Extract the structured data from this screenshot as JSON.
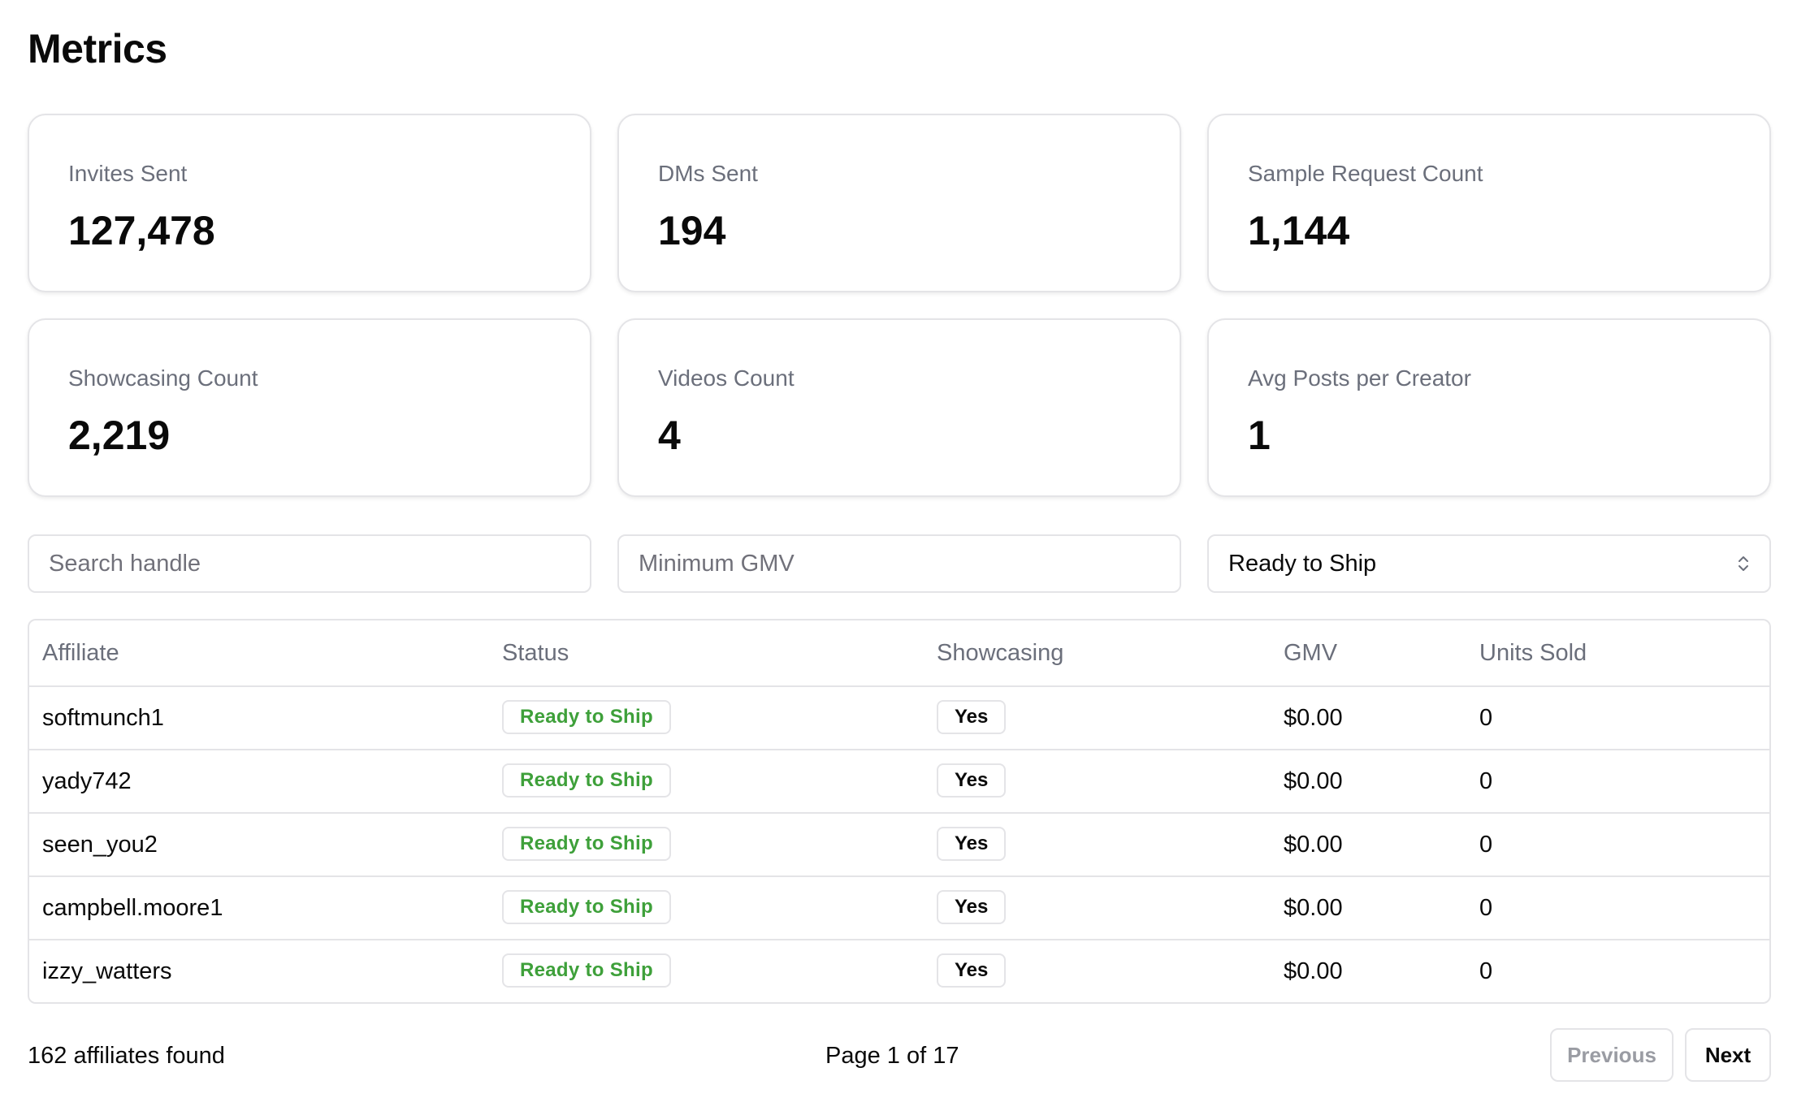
{
  "page_title": "Metrics",
  "metrics": [
    {
      "label": "Invites Sent",
      "value": "127,478"
    },
    {
      "label": "DMs Sent",
      "value": "194"
    },
    {
      "label": "Sample Request Count",
      "value": "1,144"
    },
    {
      "label": "Showcasing Count",
      "value": "2,219"
    },
    {
      "label": "Videos Count",
      "value": "4"
    },
    {
      "label": "Avg Posts per Creator",
      "value": "1"
    }
  ],
  "filters": {
    "search_placeholder": "Search handle",
    "search_value": "",
    "min_gmv_placeholder": "Minimum GMV",
    "min_gmv_value": "",
    "status_selected": "Ready to Ship",
    "select_icon": "chevron-up-down-icon"
  },
  "table": {
    "columns": [
      "Affiliate",
      "Status",
      "Showcasing",
      "GMV",
      "Units Sold"
    ],
    "rows": [
      {
        "affiliate": "softmunch1",
        "status": "Ready to Ship",
        "showcasing": "Yes",
        "gmv": "$0.00",
        "units_sold": "0"
      },
      {
        "affiliate": "yady742",
        "status": "Ready to Ship",
        "showcasing": "Yes",
        "gmv": "$0.00",
        "units_sold": "0"
      },
      {
        "affiliate": "seen_you2",
        "status": "Ready to Ship",
        "showcasing": "Yes",
        "gmv": "$0.00",
        "units_sold": "0"
      },
      {
        "affiliate": "campbell.moore1",
        "status": "Ready to Ship",
        "showcasing": "Yes",
        "gmv": "$0.00",
        "units_sold": "0"
      },
      {
        "affiliate": "izzy_watters",
        "status": "Ready to Ship",
        "showcasing": "Yes",
        "gmv": "$0.00",
        "units_sold": "0"
      }
    ]
  },
  "footer": {
    "count_text": "162 affiliates found",
    "page_text": "Page 1 of 17",
    "previous_label": "Previous",
    "next_label": "Next"
  },
  "colors": {
    "status_green": "#3ea03a",
    "muted_text": "#6b6f7b",
    "border": "#e4e4e7"
  }
}
